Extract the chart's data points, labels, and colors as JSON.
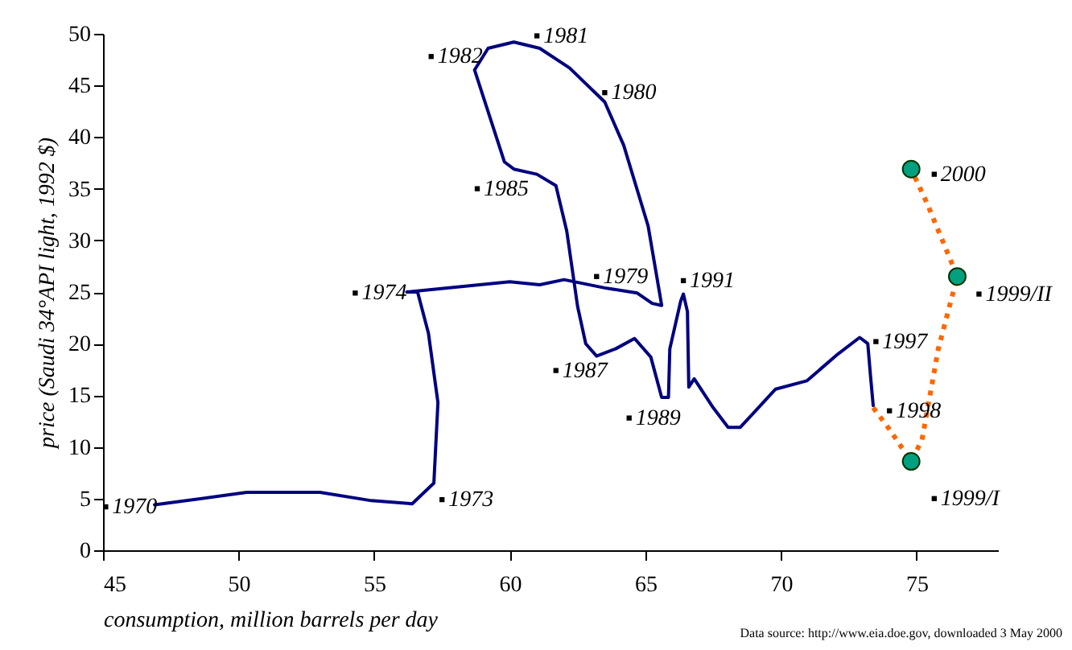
{
  "chart_data": {
    "type": "line",
    "xlabel": "consumption, million barrels per day",
    "ylabel": "price (Saudi 34°API light, 1992 $)",
    "xlim": [
      45,
      78
    ],
    "xticks": [
      45,
      50,
      55,
      60,
      65,
      70,
      75
    ],
    "ylim": [
      0,
      50
    ],
    "yticks": [
      0,
      5,
      10,
      15,
      20,
      25,
      30,
      35,
      40,
      45,
      50
    ],
    "grid": false,
    "series": [
      {
        "type": "line",
        "color": "#000080",
        "line_style": "solid",
        "marker": "none",
        "x": [
          46.9,
          50.3,
          53.0,
          54.9,
          56.4,
          57.2,
          57.35,
          57.0,
          56.6,
          56.2,
          60.0,
          61.1,
          62.0,
          63.5,
          64.7,
          65.25,
          65.6,
          65.1,
          64.2,
          63.5,
          62.2,
          61.1,
          60.15,
          59.2,
          58.7,
          59.8,
          60.15,
          61.0,
          61.7,
          62.1,
          62.5,
          62.8,
          63.2,
          63.9,
          64.6,
          65.2,
          65.6,
          65.85,
          65.9,
          66.3,
          66.4,
          66.55,
          66.6,
          66.8,
          67.5,
          68.05,
          68.5,
          69.8,
          70.95,
          72.1,
          72.9,
          73.2,
          73.3,
          73.4
        ],
        "values": [
          4.4,
          5.6,
          5.6,
          4.8,
          4.5,
          6.5,
          14.3,
          21.0,
          25.0,
          25.0,
          26.0,
          25.7,
          26.2,
          25.4,
          24.9,
          23.9,
          23.7,
          31.4,
          39.2,
          43.4,
          46.7,
          48.6,
          49.2,
          48.6,
          46.5,
          37.6,
          36.9,
          36.4,
          35.3,
          30.9,
          23.6,
          20.0,
          18.8,
          19.5,
          20.5,
          18.7,
          14.8,
          14.8,
          19.5,
          24.1,
          24.8,
          23.1,
          15.8,
          16.6,
          13.8,
          11.9,
          11.9,
          15.6,
          16.4,
          19.0,
          20.6,
          20.0,
          16.9,
          14.0
        ]
      },
      {
        "type": "line",
        "color": "#ff6600",
        "line_style": "dotted",
        "marker": "none",
        "x": [
          73.4,
          74.0,
          74.8,
          75.2,
          75.8,
          76.5,
          75.4,
          74.8
        ],
        "values": [
          13.8,
          11.7,
          8.6,
          10.7,
          19.5,
          26.5,
          33.5,
          36.9
        ]
      },
      {
        "type": "scatter",
        "color": "#00a080",
        "marker": "circle",
        "x": [
          74.8,
          76.5,
          74.8
        ],
        "values": [
          8.6,
          26.5,
          36.9
        ]
      }
    ],
    "annotations": [
      {
        "text": "1970",
        "x": 45.1,
        "y": 4.2
      },
      {
        "text": "1973",
        "x": 57.5,
        "y": 4.9
      },
      {
        "text": "1974",
        "x": 54.3,
        "y": 24.9
      },
      {
        "text": "1982",
        "x": 57.1,
        "y": 47.8
      },
      {
        "text": "1985",
        "x": 58.8,
        "y": 35.0
      },
      {
        "text": "1981",
        "x": 61.0,
        "y": 49.8
      },
      {
        "text": "1980",
        "x": 63.5,
        "y": 44.3
      },
      {
        "text": "1979",
        "x": 63.2,
        "y": 26.5
      },
      {
        "text": "1991",
        "x": 66.4,
        "y": 26.1
      },
      {
        "text": "1987",
        "x": 61.7,
        "y": 17.4
      },
      {
        "text": "1989",
        "x": 64.4,
        "y": 12.8
      },
      {
        "text": "1997",
        "x": 73.5,
        "y": 20.2
      },
      {
        "text": "1998",
        "x": 74.0,
        "y": 13.5
      },
      {
        "text": "1999/I",
        "x": 75.65,
        "y": 5.0
      },
      {
        "text": "1999/II",
        "x": 77.3,
        "y": 24.8
      },
      {
        "text": "2000",
        "x": 75.65,
        "y": 36.4
      },
      "Data source: http://www.eia.doe.gov, downloaded 3 May 2000"
    ]
  }
}
